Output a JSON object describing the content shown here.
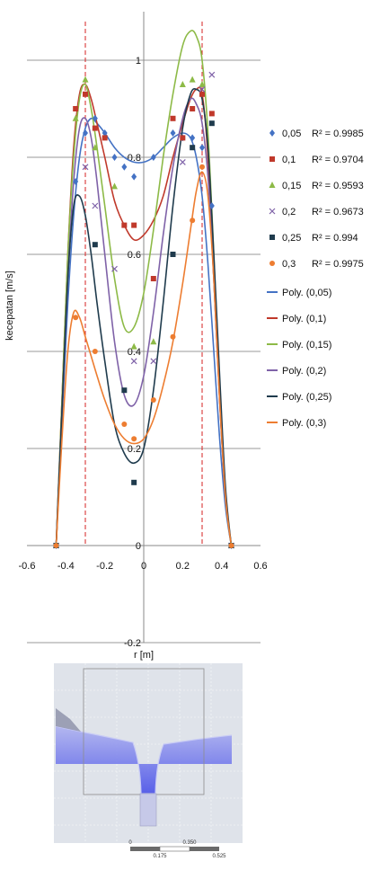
{
  "chart_data": {
    "type": "scatter",
    "xlabel": "r [m]",
    "ylabel": "kecepatan [m/s]",
    "xlim": [
      -0.6,
      0.6
    ],
    "ylim": [
      -0.2,
      1.1
    ],
    "x_ticks": [
      -0.6,
      -0.4,
      -0.2,
      0,
      0.2,
      0.4,
      0.6
    ],
    "y_ticks": [
      -0.2,
      0,
      0.2,
      0.4,
      0.6,
      0.8,
      1
    ],
    "x_tick_labels": [
      "-0.6",
      "-0.4",
      "-0.2",
      "0",
      "0.2",
      "0.4",
      "0.6"
    ],
    "y_tick_labels": [
      "-0.2",
      "0",
      "0.2",
      "0.4",
      "0.6",
      "0.8",
      "1"
    ],
    "grid": "horizontal major gridlines",
    "reference_lines_x": [
      -0.3,
      0.3
    ],
    "legend_position": "right",
    "series": [
      {
        "name": "0,05",
        "r2": "R² = 0.9985",
        "color": "#4472c4",
        "marker": "diamond",
        "x": [
          -0.45,
          -0.35,
          -0.3,
          -0.25,
          -0.2,
          -0.15,
          -0.1,
          -0.05,
          0.05,
          0.15,
          0.2,
          0.25,
          0.3,
          0.35,
          0.45
        ],
        "y": [
          0,
          0.75,
          0.85,
          0.88,
          0.85,
          0.8,
          0.78,
          0.76,
          0.8,
          0.85,
          0.84,
          0.84,
          0.82,
          0.7,
          0
        ],
        "fit_x": [
          -0.45,
          -0.42,
          -0.39,
          -0.36,
          -0.33,
          -0.3,
          -0.27,
          -0.24,
          -0.2,
          -0.15,
          -0.1,
          -0.05,
          0,
          0.05,
          0.1,
          0.15,
          0.2,
          0.24,
          0.27,
          0.3,
          0.33,
          0.36,
          0.39,
          0.42,
          0.45
        ],
        "fit_y": [
          0,
          0.26,
          0.5,
          0.68,
          0.8,
          0.86,
          0.88,
          0.87,
          0.85,
          0.82,
          0.8,
          0.79,
          0.79,
          0.8,
          0.82,
          0.84,
          0.85,
          0.84,
          0.8,
          0.72,
          0.58,
          0.4,
          0.22,
          0.08,
          0
        ]
      },
      {
        "name": "0,1",
        "r2": "R² = 0.9704",
        "color": "#c0392b",
        "marker": "square",
        "x": [
          -0.45,
          -0.35,
          -0.3,
          -0.25,
          -0.2,
          -0.1,
          -0.05,
          0.05,
          0.15,
          0.2,
          0.25,
          0.3,
          0.35,
          0.45
        ],
        "y": [
          0,
          0.9,
          0.93,
          0.86,
          0.84,
          0.66,
          0.66,
          0.55,
          0.88,
          0.84,
          0.9,
          0.93,
          0.89,
          0
        ],
        "fit_x": [
          -0.45,
          -0.42,
          -0.39,
          -0.36,
          -0.33,
          -0.3,
          -0.27,
          -0.24,
          -0.2,
          -0.15,
          -0.1,
          -0.05,
          0,
          0.05,
          0.1,
          0.15,
          0.2,
          0.24,
          0.27,
          0.3,
          0.33,
          0.36,
          0.39,
          0.42,
          0.45
        ],
        "fit_y": [
          0,
          0.3,
          0.6,
          0.82,
          0.93,
          0.95,
          0.92,
          0.87,
          0.8,
          0.71,
          0.66,
          0.63,
          0.64,
          0.67,
          0.72,
          0.8,
          0.87,
          0.92,
          0.94,
          0.93,
          0.8,
          0.55,
          0.3,
          0.1,
          0
        ]
      },
      {
        "name": "0,15",
        "r2": "R² = 0.9593",
        "color": "#8dba47",
        "marker": "triangle",
        "x": [
          -0.45,
          -0.35,
          -0.3,
          -0.25,
          -0.15,
          -0.05,
          0.05,
          0.2,
          0.25,
          0.3,
          0.45
        ],
        "y": [
          0,
          0.88,
          0.96,
          0.82,
          0.74,
          0.41,
          0.42,
          0.95,
          0.96,
          0.95,
          0
        ],
        "fit_x": [
          -0.45,
          -0.42,
          -0.39,
          -0.36,
          -0.33,
          -0.3,
          -0.27,
          -0.24,
          -0.2,
          -0.15,
          -0.1,
          -0.05,
          0,
          0.05,
          0.1,
          0.15,
          0.2,
          0.24,
          0.27,
          0.3,
          0.33,
          0.36,
          0.39,
          0.42,
          0.45
        ],
        "fit_y": [
          0,
          0.3,
          0.6,
          0.8,
          0.92,
          0.95,
          0.9,
          0.82,
          0.7,
          0.55,
          0.45,
          0.45,
          0.52,
          0.65,
          0.8,
          0.93,
          1.03,
          1.06,
          1.05,
          1.0,
          0.85,
          0.6,
          0.32,
          0.1,
          0
        ]
      },
      {
        "name": "0,2",
        "r2": "R² = 0.9673",
        "color": "#7f62a8",
        "marker": "x",
        "x": [
          -0.45,
          -0.3,
          -0.25,
          -0.15,
          -0.05,
          0.05,
          0.2,
          0.3,
          0.35,
          0.45
        ],
        "y": [
          0,
          0.78,
          0.7,
          0.57,
          0.38,
          0.38,
          0.79,
          0.94,
          0.97,
          0
        ],
        "fit_x": [
          -0.45,
          -0.42,
          -0.39,
          -0.36,
          -0.33,
          -0.3,
          -0.27,
          -0.24,
          -0.2,
          -0.15,
          -0.1,
          -0.05,
          0,
          0.05,
          0.1,
          0.15,
          0.2,
          0.24,
          0.27,
          0.3,
          0.33,
          0.36,
          0.39,
          0.42,
          0.45
        ],
        "fit_y": [
          0,
          0.28,
          0.55,
          0.75,
          0.86,
          0.88,
          0.84,
          0.75,
          0.6,
          0.42,
          0.31,
          0.29,
          0.35,
          0.48,
          0.64,
          0.78,
          0.88,
          0.92,
          0.91,
          0.87,
          0.76,
          0.55,
          0.3,
          0.1,
          0
        ]
      },
      {
        "name": "0,25",
        "r2": "R² = 0.994",
        "color": "#1f3b4d",
        "marker": "square",
        "x": [
          -0.45,
          -0.25,
          -0.1,
          -0.05,
          0.15,
          0.25,
          0.35,
          0.45
        ],
        "y": [
          0,
          0.62,
          0.32,
          0.13,
          0.6,
          0.82,
          0.87,
          0
        ],
        "fit_x": [
          -0.45,
          -0.42,
          -0.39,
          -0.36,
          -0.33,
          -0.3,
          -0.27,
          -0.24,
          -0.2,
          -0.15,
          -0.1,
          -0.05,
          0,
          0.05,
          0.1,
          0.15,
          0.2,
          0.24,
          0.27,
          0.3,
          0.33,
          0.36,
          0.39,
          0.42,
          0.45
        ],
        "fit_y": [
          0,
          0.28,
          0.55,
          0.7,
          0.72,
          0.68,
          0.6,
          0.5,
          0.38,
          0.25,
          0.19,
          0.17,
          0.2,
          0.32,
          0.5,
          0.7,
          0.86,
          0.93,
          0.94,
          0.92,
          0.82,
          0.6,
          0.35,
          0.12,
          0
        ]
      },
      {
        "name": "0,3",
        "r2": "R² = 0.9975",
        "color": "#ed7d31",
        "marker": "circle",
        "x": [
          -0.45,
          -0.35,
          -0.25,
          -0.1,
          -0.05,
          0.05,
          0.15,
          0.25,
          0.3,
          0.45
        ],
        "y": [
          0,
          0.47,
          0.4,
          0.25,
          0.22,
          0.3,
          0.43,
          0.67,
          0.78,
          0
        ],
        "fit_x": [
          -0.45,
          -0.42,
          -0.39,
          -0.36,
          -0.33,
          -0.3,
          -0.27,
          -0.24,
          -0.2,
          -0.15,
          -0.1,
          -0.05,
          0,
          0.05,
          0.1,
          0.15,
          0.2,
          0.24,
          0.27,
          0.3,
          0.33,
          0.36,
          0.39,
          0.42,
          0.45
        ],
        "fit_y": [
          0,
          0.22,
          0.4,
          0.48,
          0.47,
          0.43,
          0.39,
          0.35,
          0.3,
          0.25,
          0.22,
          0.21,
          0.22,
          0.26,
          0.33,
          0.42,
          0.54,
          0.65,
          0.73,
          0.77,
          0.72,
          0.55,
          0.3,
          0.1,
          0
        ]
      }
    ],
    "fit_legend": [
      "Poly. (0,05)",
      "Poly. (0,1)",
      "Poly. (0,15)",
      "Poly. (0,2)",
      "Poly. (0,25)",
      "Poly. (0,3)"
    ]
  },
  "simulation": {
    "scale_labels": [
      "0",
      "0.350",
      "0.175",
      "0.525"
    ],
    "colors": {
      "water": "#4a52e8",
      "light_water": "#aeb2f0",
      "background": "#dfe3ea",
      "frame": "#8d8d8d"
    }
  }
}
